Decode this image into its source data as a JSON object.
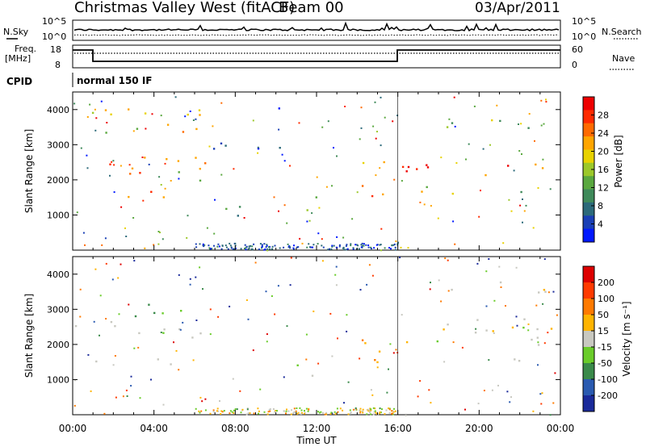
{
  "header": {
    "title": "Christmas Valley West (fitACF)",
    "beam": "Beam 00",
    "date": "03/Apr/2011"
  },
  "top_panels": {
    "nsky_label": "N.Sky",
    "nsearch_label": "N.Search",
    "nsky_ticks": [
      "10^5",
      "10^0"
    ],
    "nsearch_ticks": [
      "10^5",
      "10^0"
    ],
    "freq_label_1": "Freq.",
    "freq_label_2": "[MHz]",
    "freq_ticks": [
      "18",
      "8"
    ],
    "nave_label": "Nave",
    "nave_ticks": [
      "60",
      "0"
    ],
    "cpid_label": "CPID",
    "cpid_value": "normal 150 IF"
  },
  "chart_data": [
    {
      "type": "heatmap",
      "name": "power-panel",
      "xlabel": "",
      "ylabel": "Slant Range [km]",
      "ylim": [
        0,
        4500
      ],
      "ytick_labels": [
        "1000",
        "2000",
        "3000",
        "4000"
      ],
      "colorbar_label": "Power [dB]",
      "colorbar_ticks": [
        "28",
        "24",
        "20",
        "16",
        "12",
        "8",
        "4"
      ],
      "colorbar_colors": [
        "#0018ff",
        "#1a3fb5",
        "#2c6a7a",
        "#3f8a5a",
        "#5aa83f",
        "#9cc82a",
        "#e8d200",
        "#ffa500",
        "#ff6a00",
        "#ff2a00",
        "#ee0000"
      ],
      "regions": [
        {
          "x0": 0.0,
          "x1": 6.6,
          "y0": 2150,
          "y1": 2700,
          "level": 0.8
        },
        {
          "x0": 1.0,
          "x1": 5.4,
          "y0": 1450,
          "y1": 1700,
          "level": 0.75
        },
        {
          "x0": 0.1,
          "x1": 6.4,
          "y0": 3300,
          "y1": 4100,
          "level": 0.6
        },
        {
          "x0": 4.0,
          "x1": 6.5,
          "y0": 2000,
          "y1": 2500,
          "level": 0.55
        },
        {
          "x0": 6.8,
          "x1": 11.0,
          "y0": 2800,
          "y1": 3300,
          "level": 0.15
        },
        {
          "x0": 7.0,
          "x1": 9.0,
          "y0": 900,
          "y1": 1500,
          "level": 0.3
        },
        {
          "x0": 11.0,
          "x1": 12.6,
          "y0": 1000,
          "y1": 1600,
          "level": 0.55
        },
        {
          "x0": 14.2,
          "x1": 16.0,
          "y0": 1500,
          "y1": 2600,
          "level": 0.7
        },
        {
          "x0": 16.0,
          "x1": 24.0,
          "y0": 2100,
          "y1": 2600,
          "level": 0.85
        },
        {
          "x0": 18.0,
          "x1": 24.0,
          "y0": 3500,
          "y1": 3800,
          "level": 0.45
        },
        {
          "x0": 17.0,
          "x1": 22.5,
          "y0": 1600,
          "y1": 1900,
          "level": 0.5
        },
        {
          "x0": 9.5,
          "x1": 10.8,
          "y0": 4000,
          "y1": 4300,
          "level": 0.1
        }
      ]
    },
    {
      "type": "heatmap",
      "name": "velocity-panel",
      "xlabel": "Time UT",
      "ylabel": "Slant Range [km]",
      "ylim": [
        0,
        4500
      ],
      "ytick_labels": [
        "1000",
        "2000",
        "3000",
        "4000"
      ],
      "xtick_labels": [
        "00:00",
        "04:00",
        "08:00",
        "12:00",
        "16:00",
        "20:00",
        "00:00"
      ],
      "colorbar_label": "Velocity [m s-1]",
      "colorbar_ticks": [
        "200",
        "100",
        "50",
        "15",
        "-15",
        "-50",
        "-100",
        "-200"
      ],
      "colorbar_colors": [
        "#1a2a9a",
        "#2a5ab0",
        "#3a8a4a",
        "#6acc2a",
        "#c8c8c0",
        "#ffb400",
        "#ff7a00",
        "#ff3a00",
        "#dd0000"
      ],
      "regions": [
        {
          "x0": 0.0,
          "x1": 6.6,
          "y0": 2150,
          "y1": 2700,
          "level": 0.5
        },
        {
          "x0": 1.0,
          "x1": 5.4,
          "y0": 1450,
          "y1": 1700,
          "level": 0.5
        },
        {
          "x0": 1.5,
          "x1": 6.0,
          "y0": 2800,
          "y1": 3200,
          "level": 0.35
        },
        {
          "x0": 14.2,
          "x1": 16.0,
          "y0": 1500,
          "y1": 2600,
          "level": 0.7
        },
        {
          "x0": 16.0,
          "x1": 24.0,
          "y0": 2000,
          "y1": 2800,
          "level": 0.5
        },
        {
          "x0": 18.0,
          "x1": 24.0,
          "y0": 3500,
          "y1": 3800,
          "level": 0.5
        },
        {
          "x0": 18.0,
          "x1": 22.5,
          "y0": 1500,
          "y1": 1700,
          "level": 0.5
        },
        {
          "x0": 11.0,
          "x1": 12.6,
          "y0": 1000,
          "y1": 1600,
          "level": 0.45
        }
      ]
    }
  ]
}
